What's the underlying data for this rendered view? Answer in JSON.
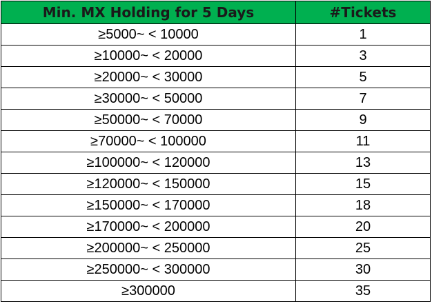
{
  "header": {
    "col1": "Min. MX Holding for 5 Days",
    "col2": "#Tickets"
  },
  "colors": {
    "header_bg": "#00b050"
  },
  "rows": [
    {
      "range": "≥5000~ < 10000",
      "tickets": "1"
    },
    {
      "range": "≥10000~ < 20000",
      "tickets": "3"
    },
    {
      "range": "≥20000~ < 30000",
      "tickets": "5"
    },
    {
      "range": "≥30000~ < 50000",
      "tickets": "7"
    },
    {
      "range": "≥50000~ < 70000",
      "tickets": "9"
    },
    {
      "range": "≥70000~ < 100000",
      "tickets": "11"
    },
    {
      "range": "≥100000~ < 120000",
      "tickets": "13"
    },
    {
      "range": "≥120000~ < 150000",
      "tickets": "15"
    },
    {
      "range": "≥150000~ < 170000",
      "tickets": "18"
    },
    {
      "range": "≥170000~ < 200000",
      "tickets": "20"
    },
    {
      "range": "≥200000~ < 250000",
      "tickets": "25"
    },
    {
      "range": "≥250000~ < 300000",
      "tickets": "30"
    },
    {
      "range": "≥300000",
      "tickets": "35"
    }
  ]
}
